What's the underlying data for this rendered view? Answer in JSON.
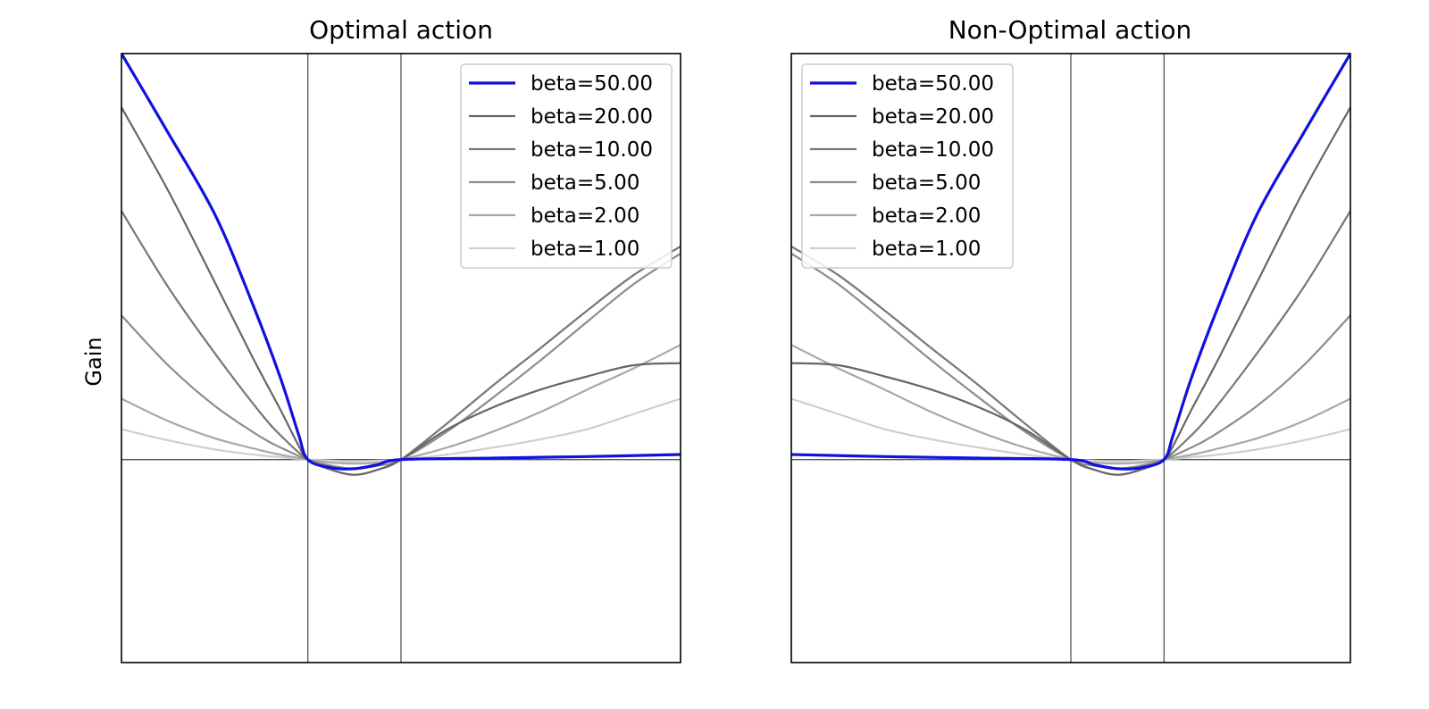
{
  "figure": {
    "ylabel": "Gain"
  },
  "chart_data": [
    {
      "type": "line",
      "title": "Optimal action",
      "xlabel": "",
      "ylabel": "Gain",
      "xlim": [
        -3,
        3
      ],
      "ylim": [
        -2,
        4
      ],
      "vlines": [
        -1,
        0
      ],
      "hlines": [
        0
      ],
      "legend_position": "top-right",
      "series": [
        {
          "name": "beta=50.00",
          "color": "#1010e0",
          "x": [
            -3,
            -2.5,
            -2,
            -1.6,
            -1.3,
            -1.1,
            -1,
            -0.75,
            -0.5,
            -0.25,
            0,
            1,
            2,
            3
          ],
          "y": [
            4.0,
            3.22,
            2.42,
            1.55,
            0.82,
            0.25,
            0,
            -0.08,
            -0.09,
            -0.05,
            0,
            0.015,
            0.03,
            0.05
          ]
        },
        {
          "name": "beta=20.00",
          "color": "#666666",
          "x": [
            -3,
            -2.5,
            -2,
            -1.6,
            -1.3,
            -1.1,
            -1,
            -0.75,
            -0.5,
            -0.25,
            0,
            0.5,
            1,
            1.5,
            2,
            2.5,
            3
          ],
          "y": [
            3.47,
            2.65,
            1.75,
            1.02,
            0.5,
            0.14,
            0,
            -0.1,
            -0.15,
            -0.1,
            0,
            0.3,
            0.52,
            0.69,
            0.82,
            0.93,
            0.95
          ]
        },
        {
          "name": "beta=10.00",
          "color": "#777777",
          "x": [
            -3,
            -2.5,
            -2,
            -1.5,
            -1.25,
            -1,
            -0.75,
            -0.5,
            -0.25,
            0,
            0.5,
            1,
            1.5,
            2,
            2.5,
            3
          ],
          "y": [
            2.45,
            1.7,
            1.05,
            0.45,
            0.2,
            0,
            -0.1,
            -0.15,
            -0.1,
            0,
            0.36,
            0.74,
            1.1,
            1.47,
            1.82,
            2.1
          ]
        },
        {
          "name": "beta=5.00",
          "color": "#8c8c8c",
          "x": [
            -3,
            -2.5,
            -2,
            -1.5,
            -1.25,
            -1,
            -0.75,
            -0.5,
            -0.25,
            0,
            0.5,
            1,
            1.5,
            2,
            2.5,
            3
          ],
          "y": [
            1.42,
            0.93,
            0.53,
            0.22,
            0.1,
            0,
            -0.06,
            -0.09,
            -0.06,
            0,
            0.28,
            0.62,
            0.98,
            1.36,
            1.73,
            2.03
          ]
        },
        {
          "name": "beta=2.00",
          "color": "#a8a8a8",
          "x": [
            -3,
            -2.5,
            -2,
            -1.5,
            -1.25,
            -1,
            -0.75,
            -0.5,
            -0.25,
            0,
            0.5,
            1,
            1.5,
            2,
            2.5,
            3
          ],
          "y": [
            0.6,
            0.38,
            0.21,
            0.09,
            0.04,
            0,
            -0.03,
            -0.04,
            -0.03,
            0,
            0.12,
            0.28,
            0.47,
            0.69,
            0.9,
            1.13
          ]
        },
        {
          "name": "beta=1.00",
          "color": "#cfcfcf",
          "x": [
            -3,
            -2.5,
            -2,
            -1.5,
            -1.25,
            -1,
            -0.75,
            -0.5,
            -0.25,
            0,
            0.5,
            1,
            1.5,
            2,
            2.5,
            3
          ],
          "y": [
            0.3,
            0.19,
            0.1,
            0.04,
            0.02,
            0,
            -0.01,
            -0.02,
            -0.01,
            0,
            0.05,
            0.12,
            0.2,
            0.3,
            0.45,
            0.6
          ]
        }
      ]
    },
    {
      "type": "line",
      "title": "Non-Optimal action",
      "xlabel": "",
      "ylabel": "",
      "xlim": [
        -3,
        3
      ],
      "ylim": [
        -2,
        4
      ],
      "vlines": [
        0,
        1
      ],
      "hlines": [
        0
      ],
      "legend_position": "top-left",
      "series": [
        {
          "name": "beta=50.00",
          "color": "#1010e0",
          "x": [
            -3,
            -2,
            -1,
            0,
            0.25,
            0.5,
            0.75,
            1,
            1.1,
            1.3,
            1.6,
            2,
            2.5,
            3
          ],
          "y": [
            0.05,
            0.03,
            0.015,
            0,
            -0.05,
            -0.09,
            -0.08,
            0,
            0.25,
            0.82,
            1.55,
            2.42,
            3.22,
            4.0
          ]
        },
        {
          "name": "beta=20.00",
          "color": "#666666",
          "x": [
            -3,
            -2.5,
            -2,
            -1.5,
            -1,
            -0.5,
            0,
            0.25,
            0.5,
            0.75,
            1,
            1.1,
            1.3,
            1.6,
            2,
            2.5,
            3
          ],
          "y": [
            0.95,
            0.93,
            0.82,
            0.69,
            0.52,
            0.3,
            0,
            -0.1,
            -0.15,
            -0.1,
            0,
            0.14,
            0.5,
            1.02,
            1.75,
            2.65,
            3.47
          ]
        },
        {
          "name": "beta=10.00",
          "color": "#777777",
          "x": [
            -3,
            -2.5,
            -2,
            -1.5,
            -1,
            -0.5,
            0,
            0.25,
            0.5,
            0.75,
            1,
            1.25,
            1.5,
            2,
            2.5,
            3
          ],
          "y": [
            2.1,
            1.82,
            1.47,
            1.1,
            0.74,
            0.36,
            0,
            -0.1,
            -0.15,
            -0.1,
            0,
            0.2,
            0.45,
            1.05,
            1.7,
            2.45
          ]
        },
        {
          "name": "beta=5.00",
          "color": "#8c8c8c",
          "x": [
            -3,
            -2.5,
            -2,
            -1.5,
            -1,
            -0.5,
            0,
            0.25,
            0.5,
            0.75,
            1,
            1.25,
            1.5,
            2,
            2.5,
            3
          ],
          "y": [
            2.03,
            1.73,
            1.36,
            0.98,
            0.62,
            0.28,
            0,
            -0.06,
            -0.09,
            -0.06,
            0,
            0.1,
            0.22,
            0.53,
            0.93,
            1.42
          ]
        },
        {
          "name": "beta=2.00",
          "color": "#a8a8a8",
          "x": [
            -3,
            -2.5,
            -2,
            -1.5,
            -1,
            -0.5,
            0,
            0.25,
            0.5,
            0.75,
            1,
            1.25,
            1.5,
            2,
            2.5,
            3
          ],
          "y": [
            1.13,
            0.9,
            0.69,
            0.47,
            0.28,
            0.12,
            0,
            -0.03,
            -0.04,
            -0.03,
            0,
            0.04,
            0.09,
            0.21,
            0.38,
            0.6
          ]
        },
        {
          "name": "beta=1.00",
          "color": "#cfcfcf",
          "x": [
            -3,
            -2.5,
            -2,
            -1.5,
            -1,
            -0.5,
            0,
            0.25,
            0.5,
            0.75,
            1,
            1.25,
            1.5,
            2,
            2.5,
            3
          ],
          "y": [
            0.6,
            0.45,
            0.3,
            0.2,
            0.12,
            0.05,
            0,
            -0.01,
            -0.02,
            -0.01,
            0,
            0.02,
            0.04,
            0.1,
            0.19,
            0.3
          ]
        }
      ]
    }
  ]
}
